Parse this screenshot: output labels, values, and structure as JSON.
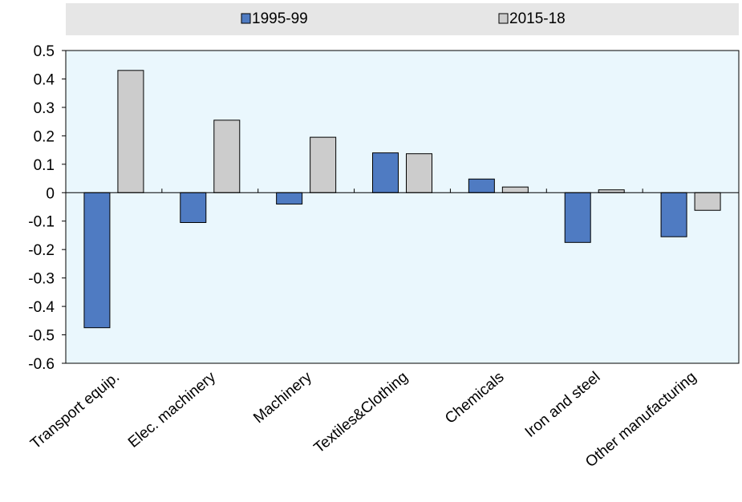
{
  "chart_data": {
    "type": "bar",
    "title": "",
    "xlabel": "",
    "ylabel": "",
    "categories": [
      "Transport equip.",
      "Elec. machinery",
      "Machinery",
      "Textiles&Clothing",
      "Chemicals",
      "Iron and steel",
      "Other manufacturing"
    ],
    "series": [
      {
        "name": "1995-99",
        "color": "#4f7bc2",
        "values": [
          -0.475,
          -0.105,
          -0.04,
          0.14,
          0.048,
          -0.175,
          -0.155
        ]
      },
      {
        "name": "2015-18",
        "color": "#cccccc",
        "values": [
          0.43,
          0.255,
          0.195,
          0.137,
          0.02,
          0.01,
          -0.062
        ]
      }
    ],
    "ylim": [
      -0.6,
      0.5
    ],
    "yticks": [
      "0.5",
      "0.4",
      "0.3",
      "0.2",
      "0.1",
      "0",
      "-0.1",
      "-0.2",
      "-0.3",
      "-0.4",
      "-0.5",
      "-0.6"
    ],
    "legend_position": "top",
    "colors": {
      "plot_background": "#eaf7fd",
      "legend_background": "#e6e6e6"
    }
  }
}
